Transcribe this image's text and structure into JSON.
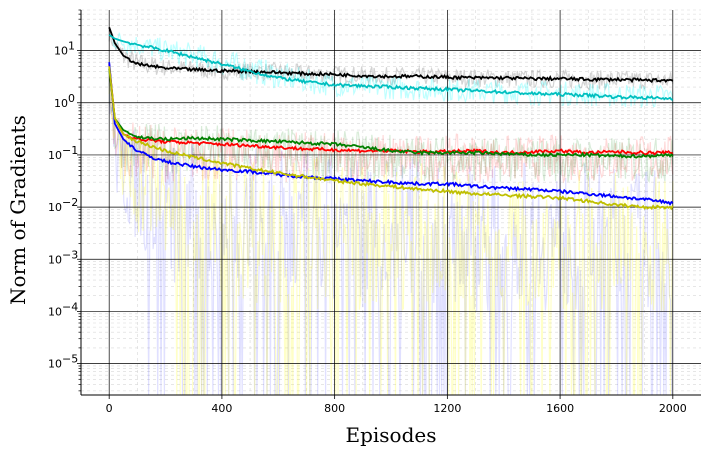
{
  "chart_data": {
    "type": "line",
    "xlabel": "Episodes",
    "ylabel": "Norm of Gradients",
    "x_range": [
      -100,
      2100
    ],
    "x_ticks": [
      0,
      400,
      800,
      1200,
      1600,
      2000
    ],
    "yscale": "log",
    "y_range": [
      2.5e-06,
      60
    ],
    "y_ticks": [
      {
        "value": 1e-05,
        "label": "10",
        "exp": "−5"
      },
      {
        "value": 0.0001,
        "label": "10",
        "exp": "−4"
      },
      {
        "value": 0.001,
        "label": "10",
        "exp": "−3"
      },
      {
        "value": 0.01,
        "label": "10",
        "exp": "−2"
      },
      {
        "value": 0.1,
        "label": "10",
        "exp": "−1"
      },
      {
        "value": 1,
        "label": "10",
        "exp": "0"
      },
      {
        "value": 10,
        "label": "10",
        "exp": "1"
      }
    ],
    "grid": true,
    "series": [
      {
        "color": "#000000",
        "band_color": "#808080",
        "band_opacity": 0.35,
        "x": [
          0,
          20,
          50,
          100,
          200,
          300,
          400,
          500,
          600,
          700,
          800,
          900,
          1000,
          1100,
          1200,
          1300,
          1400,
          1500,
          1600,
          1700,
          1800,
          1900,
          2000
        ],
        "y": [
          28,
          14,
          8,
          5.5,
          4.6,
          4.3,
          4.1,
          4.0,
          3.8,
          3.6,
          3.5,
          3.3,
          3.2,
          3.2,
          3.1,
          3.0,
          3.0,
          2.9,
          2.9,
          2.8,
          2.8,
          2.7,
          2.7
        ],
        "band_low": [
          15,
          8,
          5,
          3.5,
          3.2,
          3.0,
          2.8,
          2.7,
          2.6,
          2.5,
          2.4,
          2.3,
          2.2,
          2.2,
          2.1,
          2.0,
          2.0,
          1.9,
          1.9,
          1.8,
          1.8,
          1.8,
          1.8
        ],
        "band_high": [
          30,
          20,
          13,
          9,
          7,
          6.5,
          6.2,
          6.0,
          5.8,
          5.4,
          5.2,
          5.0,
          4.8,
          4.7,
          4.6,
          4.5,
          4.4,
          4.3,
          4.3,
          4.2,
          4.2,
          4.1,
          4.0
        ]
      },
      {
        "color": "#00bfbf",
        "band_color": "#00ffff",
        "band_opacity": 0.25,
        "x": [
          0,
          20,
          50,
          100,
          200,
          300,
          400,
          500,
          600,
          700,
          800,
          900,
          1000,
          1100,
          1200,
          1300,
          1400,
          1500,
          1600,
          1700,
          1800,
          1900,
          2000
        ],
        "y": [
          20,
          17,
          15,
          13,
          10,
          7.5,
          5.5,
          4.0,
          3.0,
          2.5,
          2.2,
          2.1,
          2.0,
          1.9,
          1.8,
          1.7,
          1.6,
          1.5,
          1.45,
          1.4,
          1.3,
          1.25,
          1.2
        ],
        "band_low": [
          12,
          10,
          9,
          8,
          6,
          4.5,
          3.2,
          2.4,
          1.8,
          1.5,
          1.3,
          1.2,
          1.15,
          1.1,
          1.05,
          1.0,
          0.95,
          0.9,
          0.88,
          0.85,
          0.8,
          0.78,
          0.75
        ],
        "band_high": [
          28,
          26,
          24,
          21,
          17,
          14,
          11,
          8,
          6,
          4.5,
          3.8,
          3.5,
          3.3,
          3.1,
          3.0,
          2.9,
          2.8,
          2.7,
          2.6,
          2.5,
          2.4,
          2.35,
          2.3
        ]
      },
      {
        "color": "#ff0000",
        "band_color": "#ff0000",
        "band_opacity": 0.15,
        "x": [
          0,
          20,
          50,
          100,
          200,
          300,
          400,
          500,
          600,
          700,
          800,
          900,
          1000,
          1100,
          1200,
          1300,
          1400,
          1500,
          1600,
          1700,
          1800,
          1900,
          2000
        ],
        "y": [
          5.5,
          0.5,
          0.25,
          0.2,
          0.18,
          0.17,
          0.16,
          0.15,
          0.14,
          0.13,
          0.125,
          0.12,
          0.12,
          0.115,
          0.115,
          0.12,
          0.11,
          0.115,
          0.12,
          0.11,
          0.115,
          0.11,
          0.11
        ],
        "band_low": [
          1.5,
          0.06,
          0.04,
          0.035,
          0.03,
          0.03,
          0.03,
          0.03,
          0.03,
          0.03,
          0.03,
          0.03,
          0.03,
          0.03,
          0.03,
          0.03,
          0.03,
          0.03,
          0.03,
          0.03,
          0.03,
          0.03,
          0.03
        ],
        "band_high": [
          6,
          0.9,
          0.5,
          0.4,
          0.38,
          0.35,
          0.33,
          0.32,
          0.3,
          0.28,
          0.27,
          0.26,
          0.26,
          0.25,
          0.25,
          0.25,
          0.24,
          0.24,
          0.25,
          0.24,
          0.24,
          0.24,
          0.24
        ]
      },
      {
        "color": "#008000",
        "band_color": "#008000",
        "band_opacity": 0.15,
        "x": [
          0,
          20,
          50,
          100,
          200,
          300,
          400,
          500,
          600,
          700,
          800,
          900,
          1000,
          1100,
          1200,
          1300,
          1400,
          1500,
          1600,
          1700,
          1800,
          1900,
          2000
        ],
        "y": [
          4.5,
          0.5,
          0.3,
          0.22,
          0.2,
          0.21,
          0.2,
          0.19,
          0.18,
          0.17,
          0.16,
          0.14,
          0.12,
          0.11,
          0.11,
          0.11,
          0.105,
          0.1,
          0.1,
          0.1,
          0.095,
          0.095,
          0.1
        ],
        "band_low": [
          1.2,
          0.08,
          0.05,
          0.04,
          0.04,
          0.04,
          0.04,
          0.04,
          0.04,
          0.035,
          0.035,
          0.03,
          0.03,
          0.03,
          0.03,
          0.03,
          0.03,
          0.03,
          0.03,
          0.03,
          0.03,
          0.03,
          0.03
        ],
        "band_high": [
          5,
          0.9,
          0.5,
          0.42,
          0.4,
          0.4,
          0.38,
          0.36,
          0.34,
          0.32,
          0.3,
          0.28,
          0.26,
          0.24,
          0.24,
          0.23,
          0.22,
          0.22,
          0.22,
          0.22,
          0.22,
          0.22,
          0.22
        ]
      },
      {
        "color": "#0000ff",
        "band_color": "#0000ff",
        "band_opacity": 0.12,
        "x": [
          0,
          20,
          50,
          100,
          150,
          200,
          300,
          400,
          500,
          600,
          700,
          800,
          900,
          1000,
          1100,
          1200,
          1300,
          1400,
          1500,
          1600,
          1700,
          1800,
          1900,
          2000
        ],
        "y": [
          6,
          0.4,
          0.2,
          0.12,
          0.09,
          0.075,
          0.06,
          0.052,
          0.048,
          0.042,
          0.038,
          0.035,
          0.032,
          0.03,
          0.028,
          0.028,
          0.025,
          0.023,
          0.022,
          0.02,
          0.018,
          0.016,
          0.014,
          0.012
        ],
        "band_low": [
          1,
          0.02,
          0.005,
          0.002,
          0.0008,
          0.0003,
          0.0002,
          0.00015,
          0.00012,
          0.0001,
          0.0001,
          0.0001,
          0.0001,
          0.0001,
          0.0001,
          0.0001,
          0.0001,
          0.0001,
          0.0001,
          0.0001,
          0.0001,
          0.0001,
          0.0001,
          0.0001
        ],
        "band_high": [
          7,
          0.8,
          0.45,
          0.3,
          0.22,
          0.2,
          0.17,
          0.15,
          0.14,
          0.13,
          0.12,
          0.11,
          0.1,
          0.1,
          0.09,
          0.09,
          0.085,
          0.08,
          0.08,
          0.075,
          0.07,
          0.065,
          0.06,
          0.055
        ]
      },
      {
        "color": "#bfbf00",
        "band_color": "#ffff00",
        "band_opacity": 0.22,
        "x": [
          0,
          20,
          50,
          100,
          200,
          300,
          400,
          500,
          600,
          700,
          800,
          900,
          1000,
          1100,
          1200,
          1300,
          1400,
          1500,
          1600,
          1700,
          1800,
          1900,
          2000
        ],
        "y": [
          5,
          0.5,
          0.25,
          0.18,
          0.12,
          0.09,
          0.07,
          0.055,
          0.045,
          0.038,
          0.032,
          0.028,
          0.025,
          0.022,
          0.02,
          0.018,
          0.017,
          0.016,
          0.015,
          0.013,
          0.011,
          0.01,
          0.01
        ],
        "band_low": [
          1,
          0.03,
          0.006,
          0.003,
          0.001,
          0.0004,
          0.0002,
          0.00015,
          0.0001,
          0.0001,
          0.0001,
          0.0001,
          0.0001,
          0.0001,
          0.0001,
          0.0001,
          0.0001,
          0.0001,
          0.0001,
          0.0001,
          0.0001,
          0.0001,
          0.0001
        ],
        "band_high": [
          6,
          0.8,
          0.45,
          0.35,
          0.25,
          0.2,
          0.16,
          0.13,
          0.11,
          0.1,
          0.09,
          0.08,
          0.075,
          0.07,
          0.065,
          0.06,
          0.058,
          0.055,
          0.055,
          0.05,
          0.048,
          0.046,
          0.045
        ]
      }
    ]
  }
}
